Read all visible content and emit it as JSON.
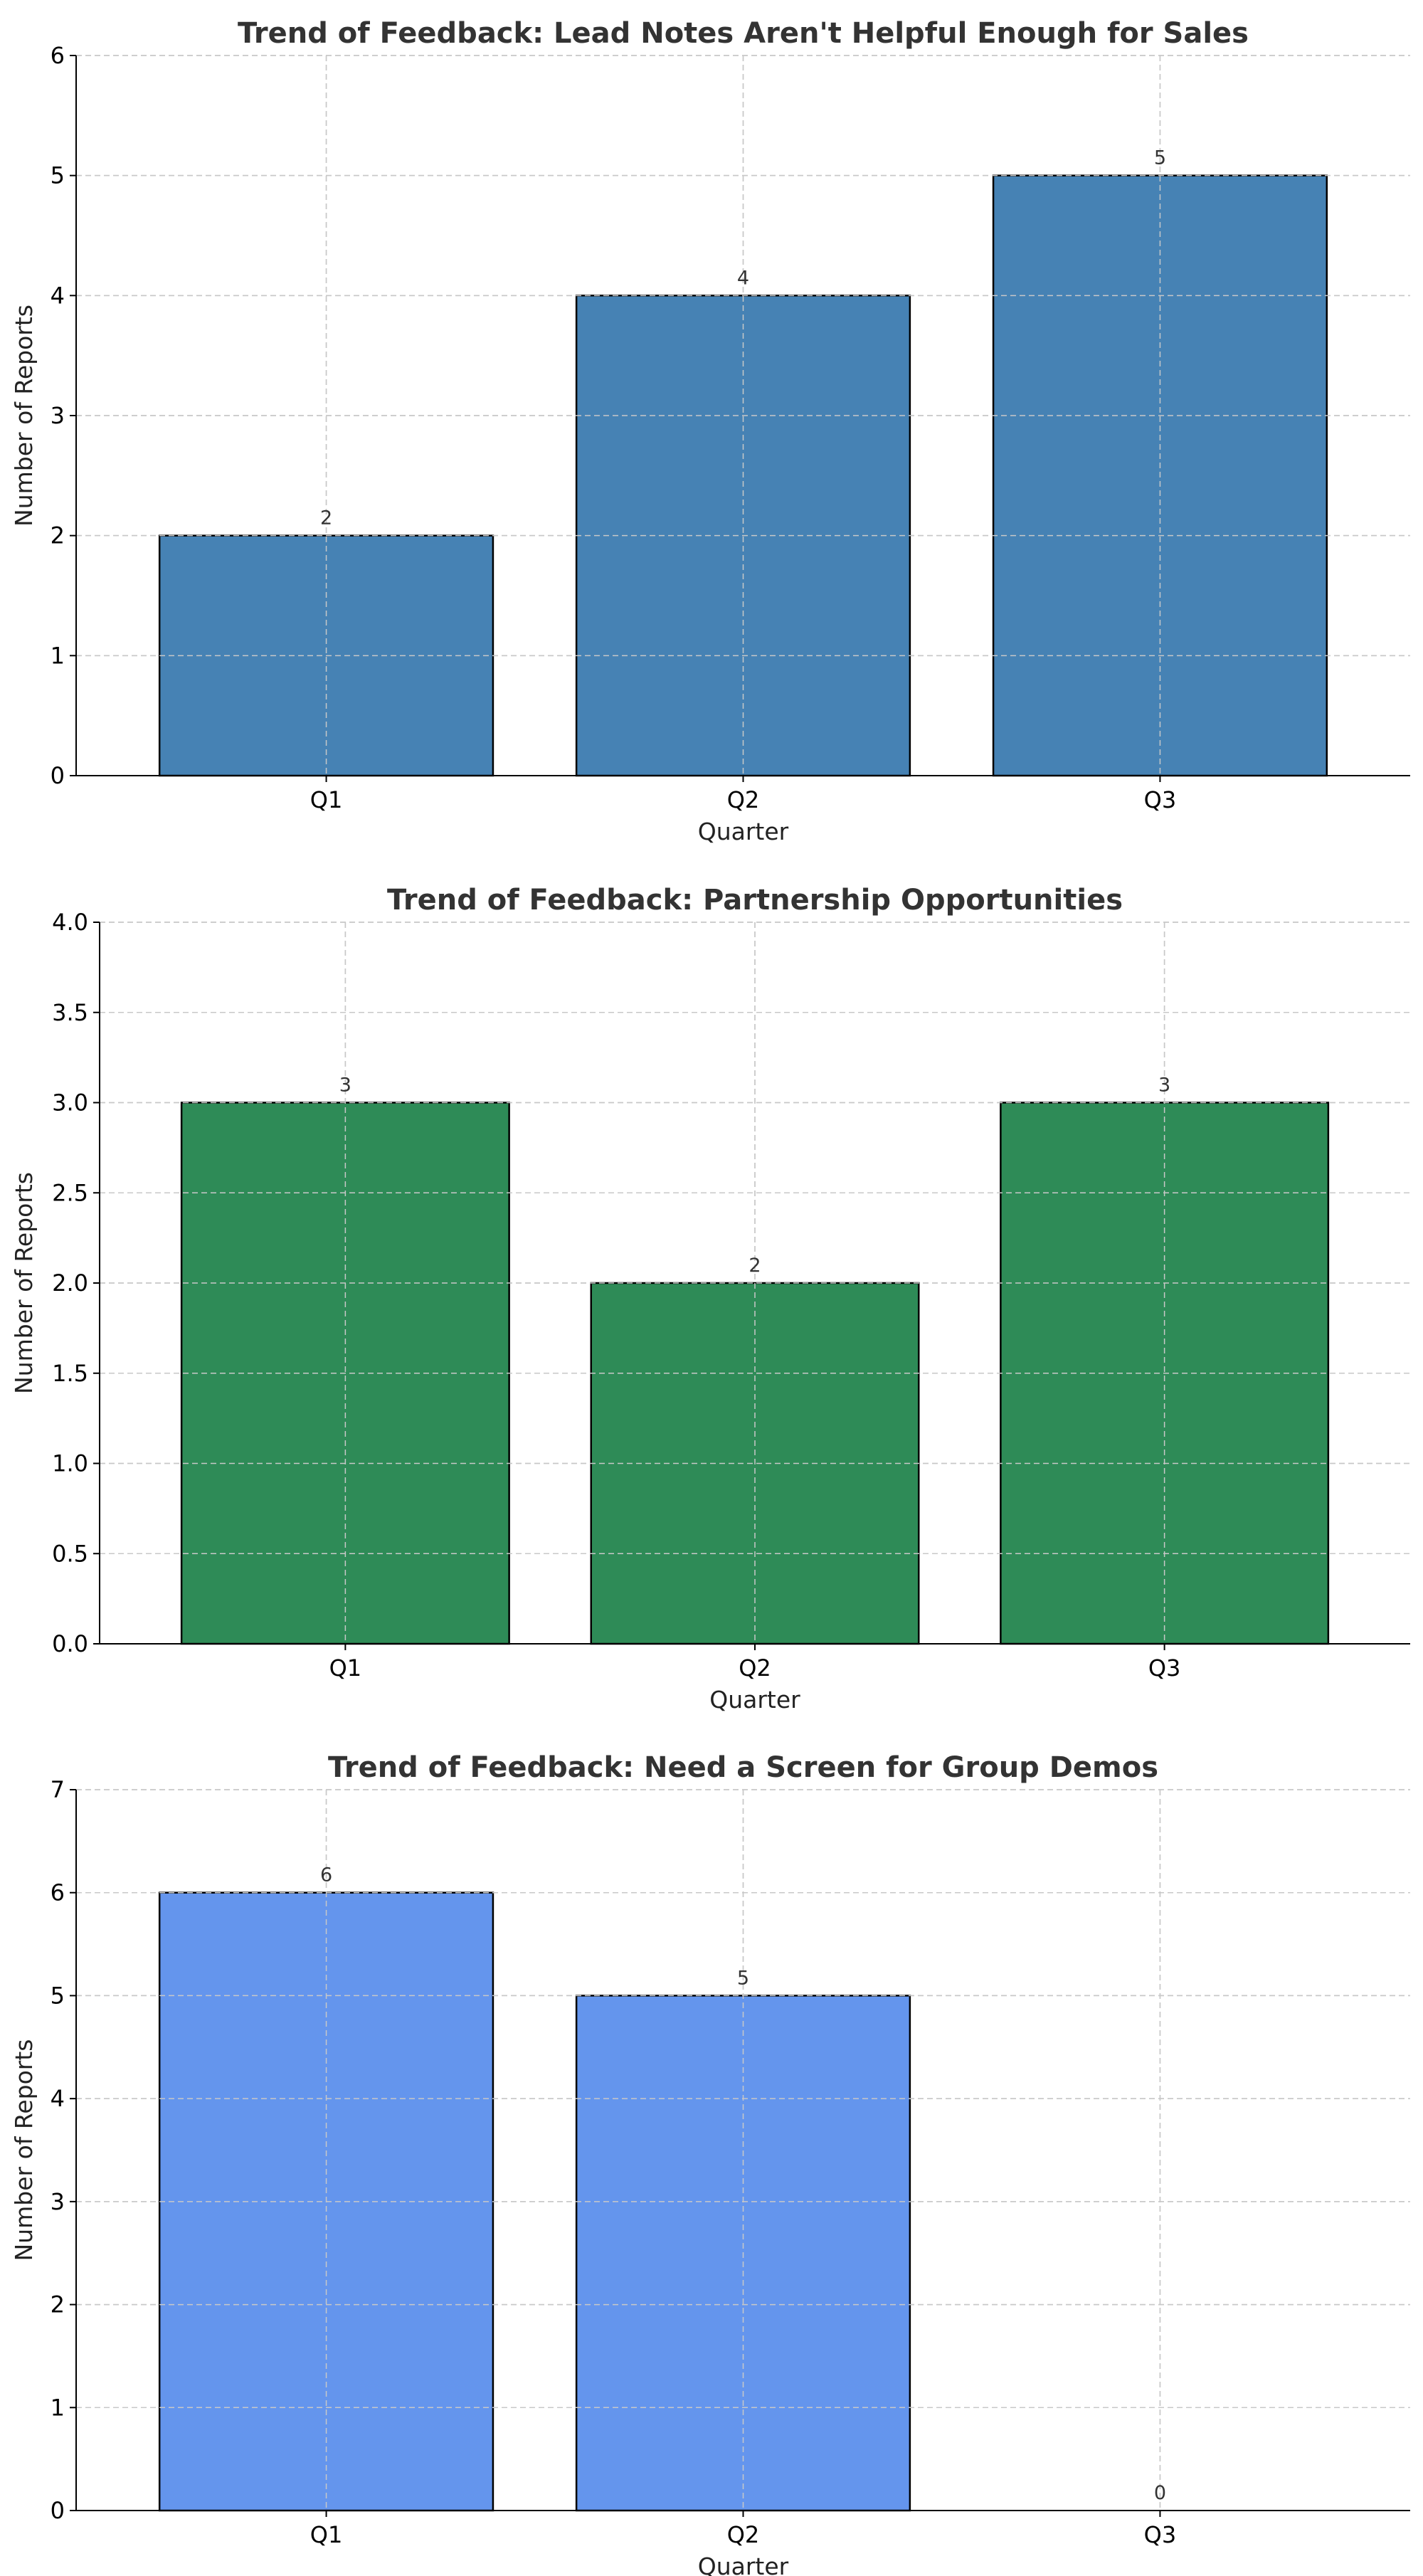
{
  "chart_data": [
    {
      "type": "bar",
      "title": "Trend of Feedback: Lead Notes Aren't Helpful Enough for Sales",
      "xlabel": "Quarter",
      "ylabel": "Number of Reports",
      "categories": [
        "Q1",
        "Q2",
        "Q3"
      ],
      "values": [
        2,
        4,
        5
      ],
      "data_labels": [
        "2",
        "4",
        "5"
      ],
      "ylim": [
        0,
        6
      ],
      "yticks": [
        "0",
        "1",
        "2",
        "3",
        "4",
        "5",
        "6"
      ],
      "grid": true,
      "bar_color": "#4682b4"
    },
    {
      "type": "bar",
      "title": "Trend of Feedback: Partnership Opportunities",
      "xlabel": "Quarter",
      "ylabel": "Number of Reports",
      "categories": [
        "Q1",
        "Q2",
        "Q3"
      ],
      "values": [
        3,
        2,
        3
      ],
      "data_labels": [
        "3",
        "2",
        "3"
      ],
      "ylim": [
        0,
        4
      ],
      "yticks": [
        "0.0",
        "0.5",
        "1.0",
        "1.5",
        "2.0",
        "2.5",
        "3.0",
        "3.5",
        "4.0"
      ],
      "grid": true,
      "bar_color": "#2e8b57"
    },
    {
      "type": "bar",
      "title": "Trend of Feedback: Need a Screen for Group Demos",
      "xlabel": "Quarter",
      "ylabel": "Number of Reports",
      "categories": [
        "Q1",
        "Q2",
        "Q3"
      ],
      "values": [
        6,
        5,
        0
      ],
      "data_labels": [
        "6",
        "5",
        "0"
      ],
      "ylim": [
        0,
        7
      ],
      "yticks": [
        "0",
        "1",
        "2",
        "3",
        "4",
        "5",
        "6",
        "7"
      ],
      "grid": true,
      "bar_color": "#6495ed"
    }
  ]
}
